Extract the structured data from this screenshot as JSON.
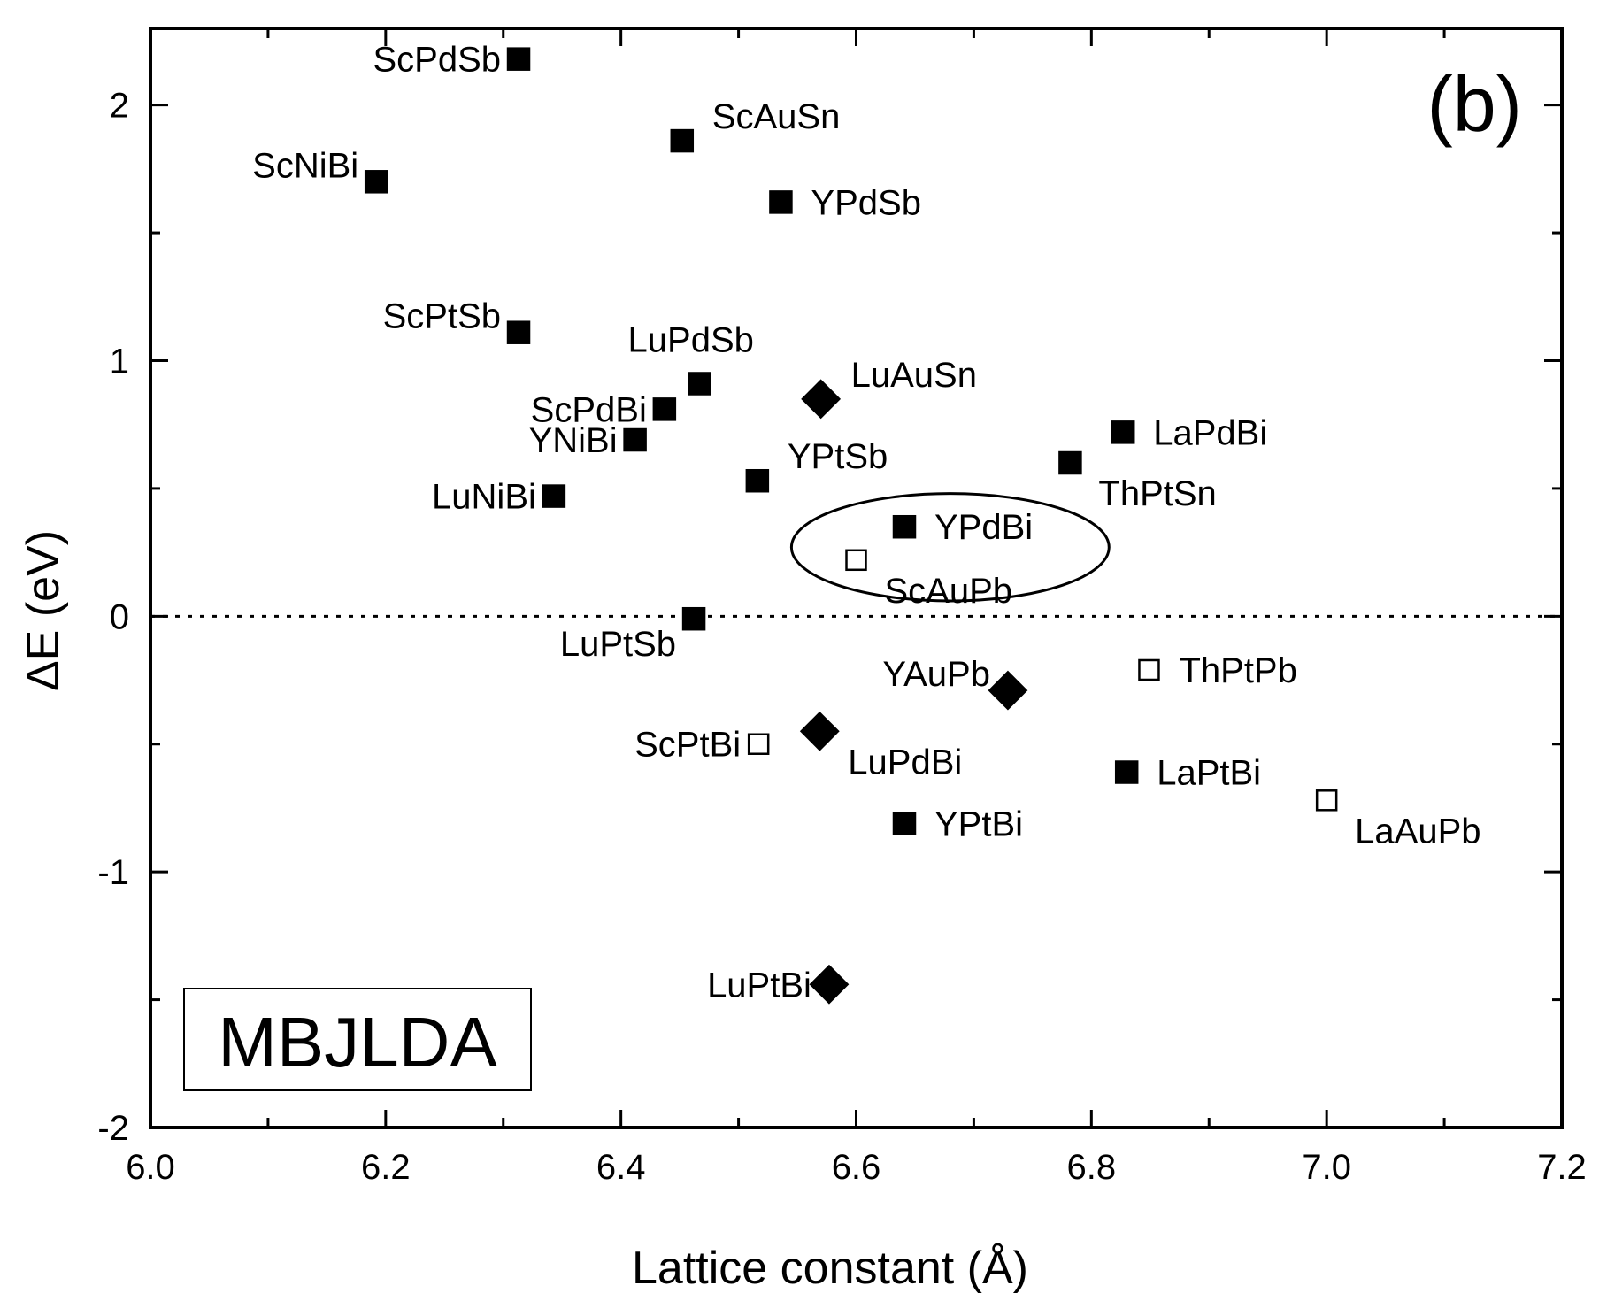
{
  "chart_data": {
    "type": "scatter",
    "panel_label": "(b)",
    "method_label": "MBJLDA",
    "xlabel": "Lattice constant (Å)",
    "ylabel": "ΔE (eV)",
    "xlim": [
      6.0,
      7.2
    ],
    "ylim": [
      -2,
      2.3
    ],
    "x_ticks": [
      6.0,
      6.2,
      6.4,
      6.6,
      6.8,
      7.0,
      7.2
    ],
    "x_tick_labels": [
      "6.0",
      "6.2",
      "6.4",
      "6.6",
      "6.8",
      "7.0",
      "7.2"
    ],
    "y_ticks": [
      2,
      1,
      0,
      -1,
      -2
    ],
    "y_tick_labels": [
      "2",
      "1",
      "0",
      "-1",
      "-2"
    ],
    "reference_line": {
      "y": 0,
      "style": "dotted"
    },
    "highlight_ellipse": {
      "center": [
        6.68,
        0.27
      ],
      "semi_axes": [
        0.135,
        0.21
      ],
      "members": [
        "YPdBi",
        "ScAuPb"
      ]
    },
    "grid": false,
    "legend": "none",
    "marker_styles": {
      "filled_square": "#000000",
      "open_square": "#ffffff",
      "filled_diamond": "#000000"
    },
    "points": [
      {
        "label": "ScPdSb",
        "x": 6.313,
        "y": 2.18,
        "marker": "filled_square",
        "label_pos": "left"
      },
      {
        "label": "ScAuSn",
        "x": 6.452,
        "y": 1.86,
        "marker": "filled_square",
        "label_pos": "upper-right"
      },
      {
        "label": "ScNiBi",
        "x": 6.192,
        "y": 1.7,
        "marker": "filled_square",
        "label_pos": "upper-left"
      },
      {
        "label": "YPdSb",
        "x": 6.536,
        "y": 1.62,
        "marker": "filled_square",
        "label_pos": "right"
      },
      {
        "label": "ScPtSb",
        "x": 6.313,
        "y": 1.11,
        "marker": "filled_square",
        "label_pos": "upper-left"
      },
      {
        "label": "LuPdSb",
        "x": 6.467,
        "y": 0.91,
        "marker": "filled_square",
        "label_pos": "above"
      },
      {
        "label": "ScPdBi",
        "x": 6.437,
        "y": 0.81,
        "marker": "filled_square",
        "label_pos": "left"
      },
      {
        "label": "LuAuSn",
        "x": 6.57,
        "y": 0.85,
        "marker": "filled_diamond",
        "label_pos": "upper-right"
      },
      {
        "label": "LaPdBi",
        "x": 6.827,
        "y": 0.72,
        "marker": "filled_square",
        "label_pos": "right"
      },
      {
        "label": "YNiBi",
        "x": 6.412,
        "y": 0.69,
        "marker": "filled_square",
        "label_pos": "left"
      },
      {
        "label": "ThPtSn",
        "x": 6.782,
        "y": 0.6,
        "marker": "filled_square",
        "label_pos": "lower-right"
      },
      {
        "label": "YPtSb",
        "x": 6.516,
        "y": 0.53,
        "marker": "filled_square",
        "label_pos": "upper-right"
      },
      {
        "label": "LuNiBi",
        "x": 6.343,
        "y": 0.47,
        "marker": "filled_square",
        "label_pos": "left"
      },
      {
        "label": "YPdBi",
        "x": 6.641,
        "y": 0.35,
        "marker": "filled_square",
        "label_pos": "right"
      },
      {
        "label": "ScAuPb",
        "x": 6.6,
        "y": 0.22,
        "marker": "open_square",
        "label_pos": "lower-right"
      },
      {
        "label": "LuPtSb",
        "x": 6.462,
        "y": -0.01,
        "marker": "filled_square",
        "label_pos": "lower-left"
      },
      {
        "label": "ThPtPb",
        "x": 6.849,
        "y": -0.21,
        "marker": "open_square",
        "label_pos": "right"
      },
      {
        "label": "YAuPb",
        "x": 6.729,
        "y": -0.29,
        "marker": "filled_diamond",
        "label_pos": "upper-left"
      },
      {
        "label": "LuPdBi",
        "x": 6.569,
        "y": -0.45,
        "marker": "filled_diamond",
        "label_pos": "lower-right"
      },
      {
        "label": "ScPtBi",
        "x": 6.517,
        "y": -0.5,
        "marker": "open_square",
        "label_pos": "left"
      },
      {
        "label": "LaPtBi",
        "x": 6.83,
        "y": -0.61,
        "marker": "filled_square",
        "label_pos": "right"
      },
      {
        "label": "LaAuPb",
        "x": 7.0,
        "y": -0.72,
        "marker": "open_square",
        "label_pos": "lower-right"
      },
      {
        "label": "YPtBi",
        "x": 6.641,
        "y": -0.81,
        "marker": "filled_square",
        "label_pos": "right"
      },
      {
        "label": "LuPtBi",
        "x": 6.577,
        "y": -1.44,
        "marker": "filled_diamond",
        "label_pos": "left"
      }
    ]
  }
}
